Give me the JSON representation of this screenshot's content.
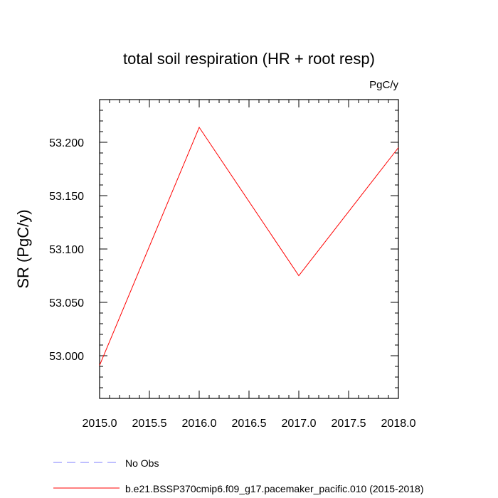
{
  "chart_data": {
    "type": "line",
    "title": "total soil respiration (HR + root resp)",
    "units_label": "PgC/y",
    "ylabel": "SR  (PgC/y)",
    "xlabel": "",
    "xlim": [
      2015.0,
      2018.0
    ],
    "ylim": [
      52.96,
      53.24
    ],
    "x_ticks": [
      2015.0,
      2015.5,
      2016.0,
      2016.5,
      2017.0,
      2017.5,
      2018.0
    ],
    "x_tick_labels": [
      "2015.0",
      "2015.5",
      "2016.0",
      "2016.5",
      "2017.0",
      "2017.5",
      "2018.0"
    ],
    "y_ticks": [
      53.0,
      53.05,
      53.1,
      53.15,
      53.2
    ],
    "y_tick_labels": [
      "53.000",
      "53.050",
      "53.100",
      "53.150",
      "53.200"
    ],
    "grid": false,
    "legend_position": "bottom-left",
    "series": [
      {
        "name": "b.e21.BSSP370cmip6.f09_g17.pacemaker_pacific.010 (2015-2018)",
        "color": "#ff0000",
        "dash": "solid",
        "x": [
          2015.0,
          2016.0,
          2017.0,
          2018.0
        ],
        "values": [
          52.991,
          53.214,
          53.075,
          53.195
        ]
      }
    ],
    "legend": [
      {
        "label": "No Obs",
        "color": "#7f7fff",
        "dash": "dashed"
      },
      {
        "label": "b.e21.BSSP370cmip6.f09_g17.pacemaker_pacific.010 (2015-2018)",
        "color": "#ff0000",
        "dash": "solid"
      }
    ]
  }
}
